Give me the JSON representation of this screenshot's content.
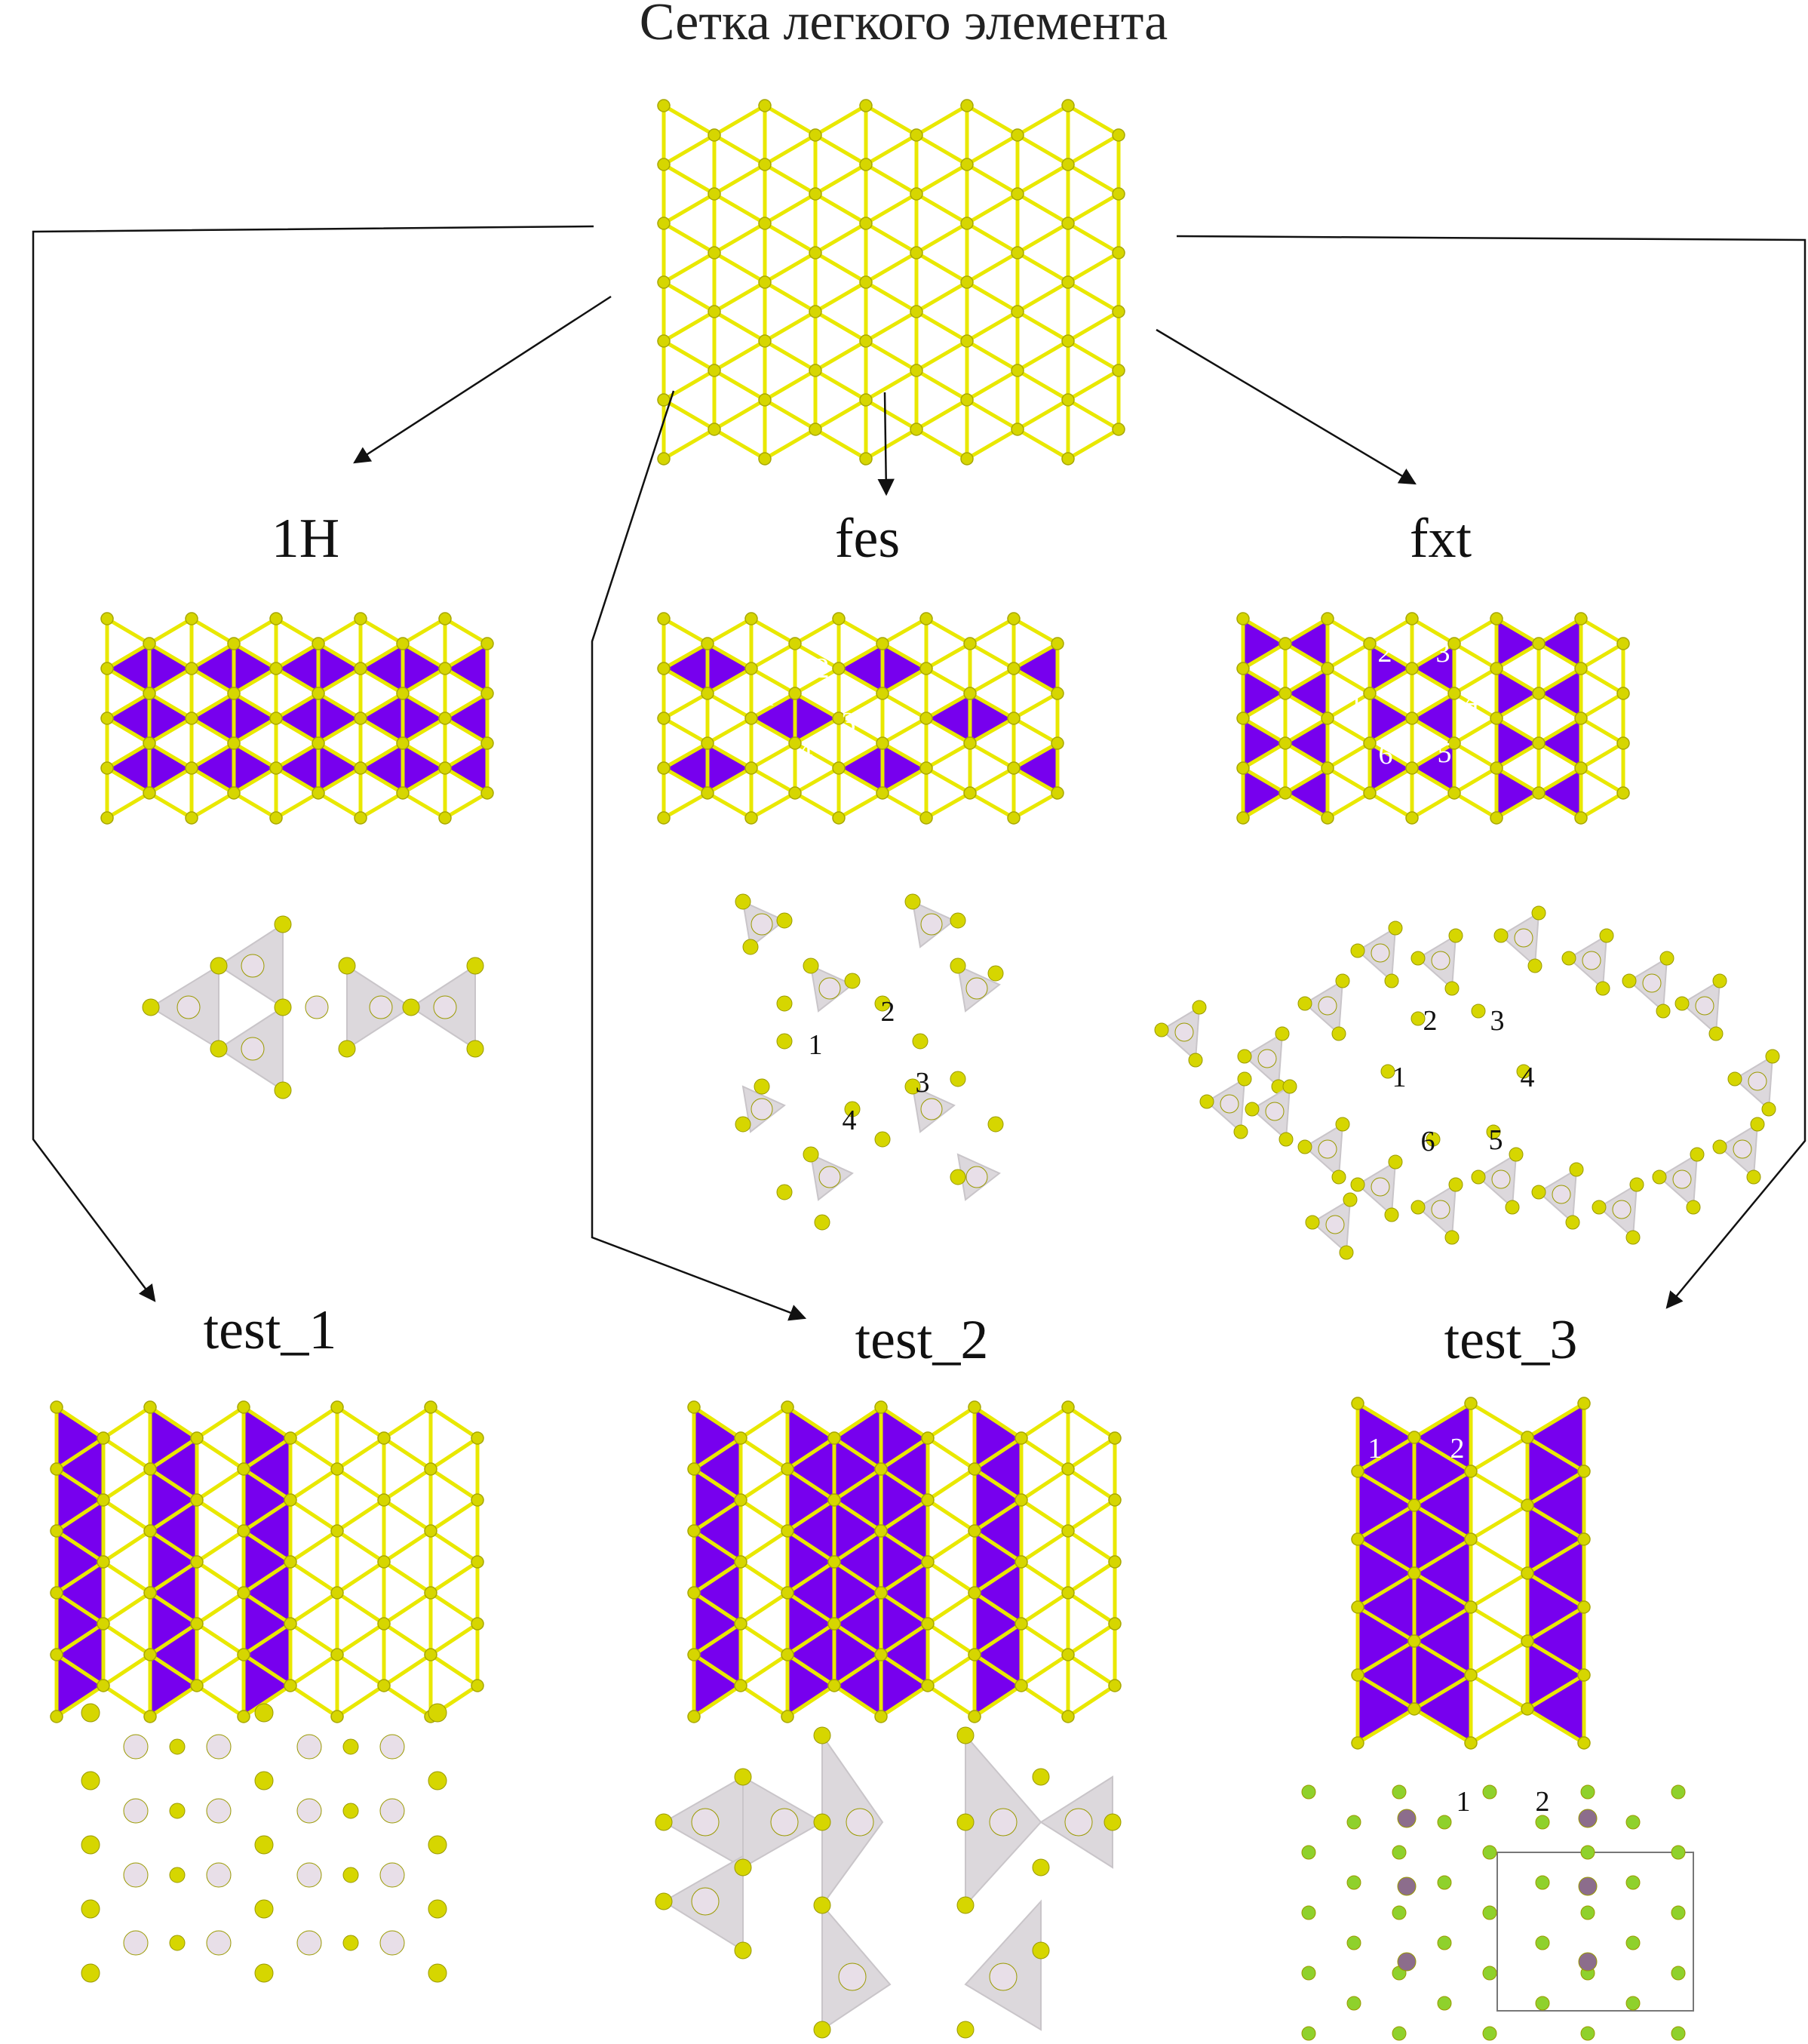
{
  "title": "Сетка легкого элемента",
  "panels": {
    "h1": {
      "label": "1H"
    },
    "fes": {
      "label": "fes",
      "site_numbers": [
        "1",
        "2",
        "3",
        "4"
      ]
    },
    "fxt": {
      "label": "fxt",
      "site_numbers": [
        "1",
        "2",
        "3",
        "4",
        "5",
        "6"
      ]
    },
    "test1": {
      "label": "test_1"
    },
    "test2": {
      "label": "test_2"
    },
    "test3": {
      "label": "test_3",
      "site_numbers": [
        "1",
        "2"
      ]
    }
  },
  "colors": {
    "bond": "#e9e800",
    "atom": "#d6d600",
    "triangle": "#7700ee",
    "ghost_triangle": "#dcd8dc",
    "ghost_atom": "#e8dfe8",
    "green_atom": "#8fd12c",
    "mauve_atom": "#8c6d8c",
    "arrow": "#111111"
  }
}
